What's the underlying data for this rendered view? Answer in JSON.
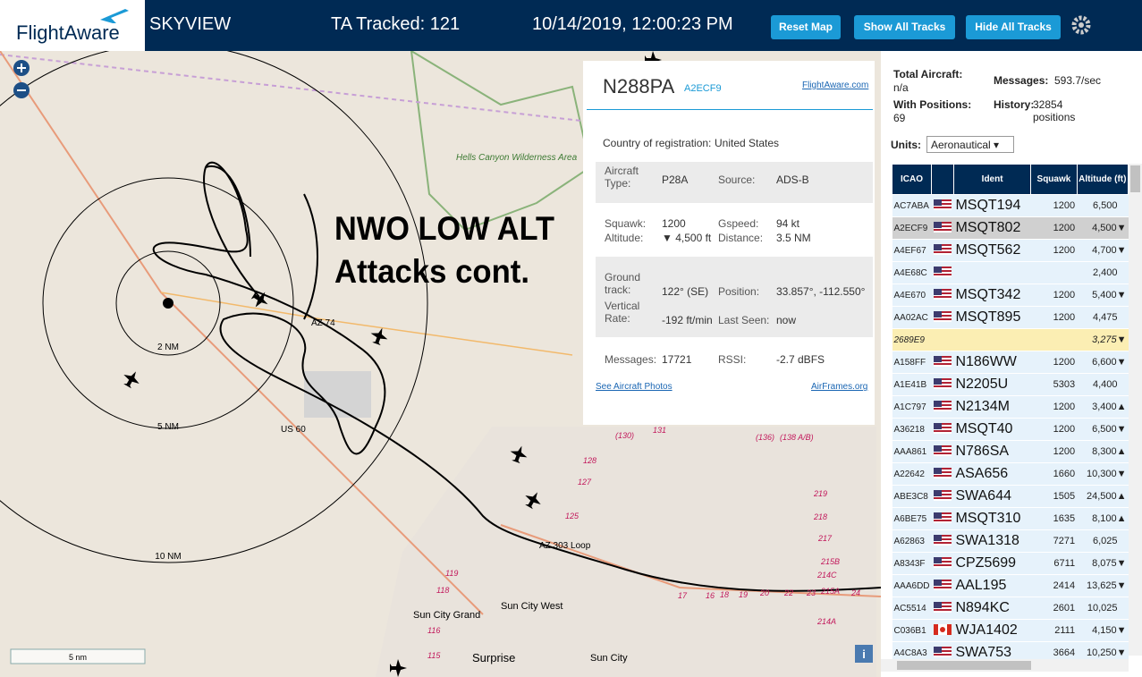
{
  "header": {
    "logo": "FlightAware",
    "title": "SKYVIEW",
    "tracked": "TA Tracked: 121",
    "datetime": "10/14/2019, 12:00:23 PM",
    "buttons": [
      "Reset Map",
      "Show All Tracks",
      "Hide All Tracks"
    ]
  },
  "map": {
    "overlay": [
      "NWO LOW ALT",
      "Attacks cont."
    ],
    "rings": [
      "2 NM",
      "5 NM",
      "10 NM"
    ],
    "places": [
      "Hells Canyon Wilderness Area",
      "AZ 74",
      "US 60",
      "AZ 303 Loop",
      "Sun City Grand",
      "Sun City West",
      "Surprise",
      "Sun City"
    ],
    "roads": [
      "(130)",
      "131",
      "128",
      "127",
      "125",
      "(136)",
      "(138 A/B)",
      "219",
      "218",
      "217",
      "215B",
      "214C",
      "215A",
      "214A",
      "119",
      "118",
      "116",
      "115",
      "17",
      "16",
      "18",
      "19",
      "20",
      "22",
      "23",
      "24"
    ],
    "scale": "5 nm",
    "info": "i"
  },
  "info": {
    "registration": "N288PA",
    "hex": "A2ECF9",
    "link": "FlightAware.com",
    "country_label": "Country of registration:",
    "country": "United States",
    "fields": [
      {
        "label": "Aircraft Type:",
        "value": "P28A"
      },
      {
        "label": "Source:",
        "value": "ADS-B"
      },
      {
        "label": "Squawk:",
        "value": "1200"
      },
      {
        "label": "Gspeed:",
        "value": "94 kt"
      },
      {
        "label": "Altitude:",
        "value": "▼ 4,500 ft"
      },
      {
        "label": "Distance:",
        "value": "3.5 NM"
      },
      {
        "label": "Ground track:",
        "value": "122° (SE)"
      },
      {
        "label": "Position:",
        "value": "33.857°, -112.550°"
      },
      {
        "label": "Vertical Rate:",
        "value": "-192 ft/min"
      },
      {
        "label": "Last Seen:",
        "value": "now"
      },
      {
        "label": "Messages:",
        "value": "17721"
      },
      {
        "label": "RSSI:",
        "value": "-2.7 dBFS"
      }
    ],
    "photos": "See Aircraft Photos",
    "airframes": "AirFrames.org"
  },
  "stats": {
    "total_label": "Total Aircraft:",
    "total": "n/a",
    "messages_label": "Messages:",
    "messages": "593.7/sec",
    "positions_label": "With Positions:",
    "positions": "69",
    "history_label": "History:",
    "history": "32854 positions",
    "units_label": "Units:",
    "units": "Aeronautical"
  },
  "table": {
    "columns": [
      "ICAO",
      "Ident",
      "Squawk",
      "Altitude (ft)"
    ],
    "rows": [
      {
        "icao": "AC7ABA",
        "flag": "us",
        "ident": "MSQT194",
        "squawk": "1200",
        "alt": "6,500"
      },
      {
        "icao": "A2ECF9",
        "flag": "us",
        "ident": "MSQT802",
        "squawk": "1200",
        "alt": "4,500",
        "trend": "▼"
      },
      {
        "icao": "A4EF67",
        "flag": "us",
        "ident": "MSQT562",
        "squawk": "1200",
        "alt": "4,700",
        "trend": "▼"
      },
      {
        "icao": "A4E68C",
        "flag": "us",
        "alt": "2,400"
      },
      {
        "icao": "A4E670",
        "flag": "us",
        "ident": "MSQT342",
        "squawk": "1200",
        "alt": "5,400",
        "trend": "▼"
      },
      {
        "icao": "AA02AC",
        "flag": "us",
        "ident": "MSQT895",
        "squawk": "1200",
        "alt": "4,475"
      },
      {
        "icao": "2689E9",
        "alt": "3,275",
        "trend": "▼"
      },
      {
        "icao": "A158FF",
        "flag": "us",
        "ident": "N186WW",
        "squawk": "1200",
        "alt": "6,600",
        "trend": "▼"
      },
      {
        "icao": "A1E41B",
        "flag": "us",
        "ident": "N2205U",
        "squawk": "5303",
        "alt": "4,400"
      },
      {
        "icao": "A1C797",
        "flag": "us",
        "ident": "N2134M",
        "squawk": "1200",
        "alt": "3,400",
        "trend": "▲"
      },
      {
        "icao": "A36218",
        "flag": "us",
        "ident": "MSQT40",
        "squawk": "1200",
        "alt": "6,500",
        "trend": "▼"
      },
      {
        "icao": "AAA861",
        "flag": "us",
        "ident": "N786SA",
        "squawk": "1200",
        "alt": "8,300",
        "trend": "▲"
      },
      {
        "icao": "A22642",
        "flag": "us",
        "ident": "ASA656",
        "squawk": "1660",
        "alt": "10,300",
        "trend": "▼"
      },
      {
        "icao": "ABE3C8",
        "flag": "us",
        "ident": "SWA644",
        "squawk": "1505",
        "alt": "24,500",
        "trend": "▲"
      },
      {
        "icao": "A6BE75",
        "flag": "us",
        "ident": "MSQT310",
        "squawk": "1635",
        "alt": "8,100",
        "trend": "▲"
      },
      {
        "icao": "A62863",
        "flag": "us",
        "ident": "SWA1318",
        "squawk": "7271",
        "alt": "6,025"
      },
      {
        "icao": "A8343F",
        "flag": "us",
        "ident": "CPZ5699",
        "squawk": "6711",
        "alt": "8,075",
        "trend": "▼"
      },
      {
        "icao": "AAA6DD",
        "flag": "us",
        "ident": "AAL195",
        "squawk": "2414",
        "alt": "13,625",
        "trend": "▼"
      },
      {
        "icao": "AC5514",
        "flag": "us",
        "ident": "N894KC",
        "squawk": "2601",
        "alt": "10,025"
      },
      {
        "icao": "C036B1",
        "flag": "ca",
        "ident": "WJA1402",
        "squawk": "2111",
        "alt": "4,150",
        "trend": "▼"
      },
      {
        "icao": "A4C8A3",
        "flag": "us",
        "ident": "SWA753",
        "squawk": "3664",
        "alt": "10,250",
        "trend": "▼"
      }
    ]
  }
}
